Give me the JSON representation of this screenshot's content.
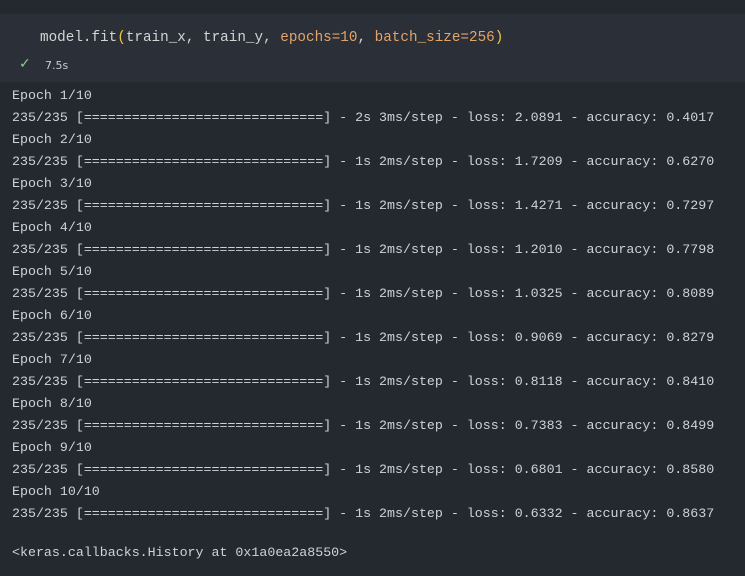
{
  "cell": {
    "code": [
      {
        "text": "model.fit",
        "color": "#d4d4d4"
      },
      {
        "text": "(",
        "color": "#f0c93a"
      },
      {
        "text": "train_x, train_y, ",
        "color": "#d4d4d4"
      },
      {
        "text": "epochs=10",
        "color": "#e3a469"
      },
      {
        "text": ", ",
        "color": "#d4d4d4"
      },
      {
        "text": "batch_size=256",
        "color": "#e3a469"
      },
      {
        "text": ")",
        "color": "#f0c93a"
      }
    ],
    "status": "✓",
    "time": "7.5s"
  },
  "output": {
    "lines": [
      "Epoch 1/10",
      "235/235 [==============================] - 2s 3ms/step - loss: 2.0891 - accuracy: 0.4017",
      "Epoch 2/10",
      "235/235 [==============================] - 1s 2ms/step - loss: 1.7209 - accuracy: 0.6270",
      "Epoch 3/10",
      "235/235 [==============================] - 1s 2ms/step - loss: 1.4271 - accuracy: 0.7297",
      "Epoch 4/10",
      "235/235 [==============================] - 1s 2ms/step - loss: 1.2010 - accuracy: 0.7798",
      "Epoch 5/10",
      "235/235 [==============================] - 1s 2ms/step - loss: 1.0325 - accuracy: 0.8089",
      "Epoch 6/10",
      "235/235 [==============================] - 1s 2ms/step - loss: 0.9069 - accuracy: 0.8279",
      "Epoch 7/10",
      "235/235 [==============================] - 1s 2ms/step - loss: 0.8118 - accuracy: 0.8410",
      "Epoch 8/10",
      "235/235 [==============================] - 1s 2ms/step - loss: 0.7383 - accuracy: 0.8499",
      "Epoch 9/10",
      "235/235 [==============================] - 1s 2ms/step - loss: 0.6801 - accuracy: 0.8580",
      "Epoch 10/10",
      "235/235 [==============================] - 1s 2ms/step - loss: 0.6332 - accuracy: 0.8637"
    ],
    "result": "<keras.callbacks.History at 0x1a0ea2a8550>"
  }
}
